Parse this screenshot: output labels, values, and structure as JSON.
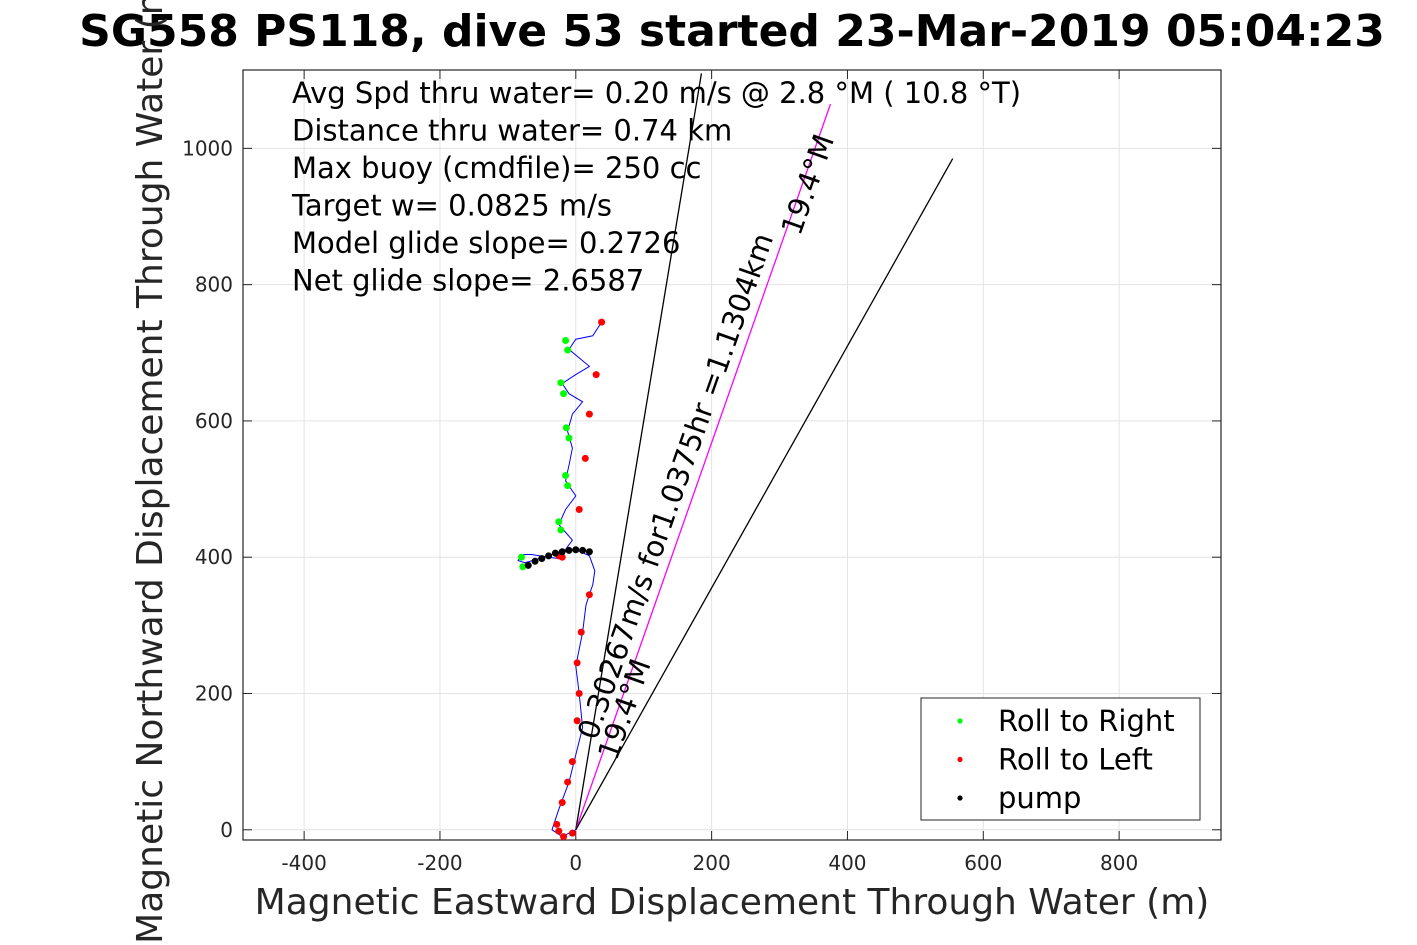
{
  "chart_data": {
    "type": "line",
    "title": "SG558 PS118, dive 53 started 23-Mar-2019 05:04:23",
    "xlabel": "Magnetic Eastward Displacement Through Water (m)",
    "ylabel": "Magnetic Northward Displacement Through Water (m)",
    "xlim": [
      -490,
      950
    ],
    "ylim": [
      -15,
      1115
    ],
    "xticks": [
      -400,
      -200,
      0,
      200,
      400,
      600,
      800
    ],
    "yticks": [
      0,
      200,
      400,
      600,
      800,
      1000
    ],
    "xtick_labels": [
      "-400",
      "-200",
      "0",
      "200",
      "400",
      "600",
      "800"
    ],
    "ytick_labels": [
      "0",
      "200",
      "400",
      "600",
      "800",
      "1000"
    ],
    "grid": true,
    "legend_position": "bottom-right",
    "annotations": [
      "Avg Spd thru water=  0.20 m/s @   2.8 °M ( 10.8 °T)",
      "Distance thru water=  0.74 km",
      "Max buoy (cmdfile)= 250 cc",
      "Target w= 0.0825 m/s",
      "Model glide slope= 0.2726",
      "Net glide slope= 2.6587"
    ],
    "rotated_labels": [
      {
        "text": "0.30267m/s for1.0375hr =1.1304km",
        "x": 30,
        "y": 130,
        "angle_deg": 70.6
      },
      {
        "text": "19.4°M",
        "x": 60,
        "y": 100,
        "angle_deg": 70.6
      },
      {
        "text": "19.4°M",
        "x": 330,
        "y": 870,
        "angle_deg": 70.6
      }
    ],
    "series": [
      {
        "name": "Roll to Right",
        "color": "#00ff00",
        "marker": "dot",
        "values_xy": [
          [
            -15,
            718
          ],
          [
            -12,
            704
          ],
          [
            -22,
            656
          ],
          [
            -18,
            640
          ],
          [
            -14,
            590
          ],
          [
            -10,
            575
          ],
          [
            -15,
            520
          ],
          [
            -12,
            505
          ],
          [
            -25,
            452
          ],
          [
            -22,
            440
          ],
          [
            -80,
            400
          ],
          [
            -78,
            386
          ]
        ]
      },
      {
        "name": "Roll to Left",
        "color": "#ff0000",
        "marker": "dot",
        "values_xy": [
          [
            38,
            745
          ],
          [
            30,
            668
          ],
          [
            20,
            610
          ],
          [
            14,
            545
          ],
          [
            5,
            470
          ],
          [
            -20,
            400
          ],
          [
            -25,
            402
          ],
          [
            20,
            345
          ],
          [
            8,
            290
          ],
          [
            2,
            245
          ],
          [
            5,
            200
          ],
          [
            2,
            160
          ],
          [
            -5,
            100
          ],
          [
            -12,
            70
          ],
          [
            -20,
            40
          ],
          [
            -28,
            8
          ],
          [
            -25,
            -2
          ],
          [
            -18,
            -10
          ],
          [
            -5,
            -5
          ]
        ]
      },
      {
        "name": "pump",
        "color": "#000000",
        "marker": "dot",
        "values_xy": [
          [
            -70,
            388
          ],
          [
            -60,
            394
          ],
          [
            -50,
            398
          ],
          [
            -40,
            402
          ],
          [
            -30,
            406
          ],
          [
            -20,
            408
          ],
          [
            -10,
            410
          ],
          [
            0,
            411
          ],
          [
            10,
            410
          ],
          [
            20,
            408
          ]
        ]
      }
    ],
    "track_xy": [
      [
        0,
        0
      ],
      [
        -20,
        -10
      ],
      [
        -35,
        0
      ],
      [
        -25,
        30
      ],
      [
        -10,
        70
      ],
      [
        0,
        110
      ],
      [
        10,
        150
      ],
      [
        5,
        200
      ],
      [
        0,
        240
      ],
      [
        10,
        290
      ],
      [
        15,
        330
      ],
      [
        25,
        360
      ],
      [
        28,
        380
      ],
      [
        20,
        402
      ],
      [
        0,
        411
      ],
      [
        -30,
        406
      ],
      [
        -60,
        396
      ],
      [
        -75,
        392
      ],
      [
        -85,
        395
      ],
      [
        -80,
        404
      ],
      [
        -65,
        404
      ],
      [
        -40,
        400
      ],
      [
        -25,
        398
      ],
      [
        -5,
        425
      ],
      [
        -25,
        448
      ],
      [
        -15,
        470
      ],
      [
        0,
        490
      ],
      [
        -15,
        512
      ],
      [
        -10,
        535
      ],
      [
        -5,
        560
      ],
      [
        -12,
        585
      ],
      [
        -5,
        610
      ],
      [
        10,
        628
      ],
      [
        -10,
        640
      ],
      [
        -20,
        655
      ],
      [
        0,
        668
      ],
      [
        20,
        680
      ],
      [
        -10,
        705
      ],
      [
        0,
        720
      ],
      [
        25,
        725
      ],
      [
        38,
        745
      ]
    ],
    "reference_lines": [
      {
        "from": [
          0,
          0
        ],
        "to": [
          185,
          1110
        ],
        "color": "#000000"
      },
      {
        "from": [
          0,
          0
        ],
        "to": [
          375,
          1065
        ],
        "color": "#ff00ff"
      },
      {
        "from": [
          0,
          0
        ],
        "to": [
          555,
          985
        ],
        "color": "#000000"
      }
    ],
    "legend": {
      "entries": [
        "Roll to Right",
        "Roll to Left",
        "pump"
      ]
    }
  }
}
